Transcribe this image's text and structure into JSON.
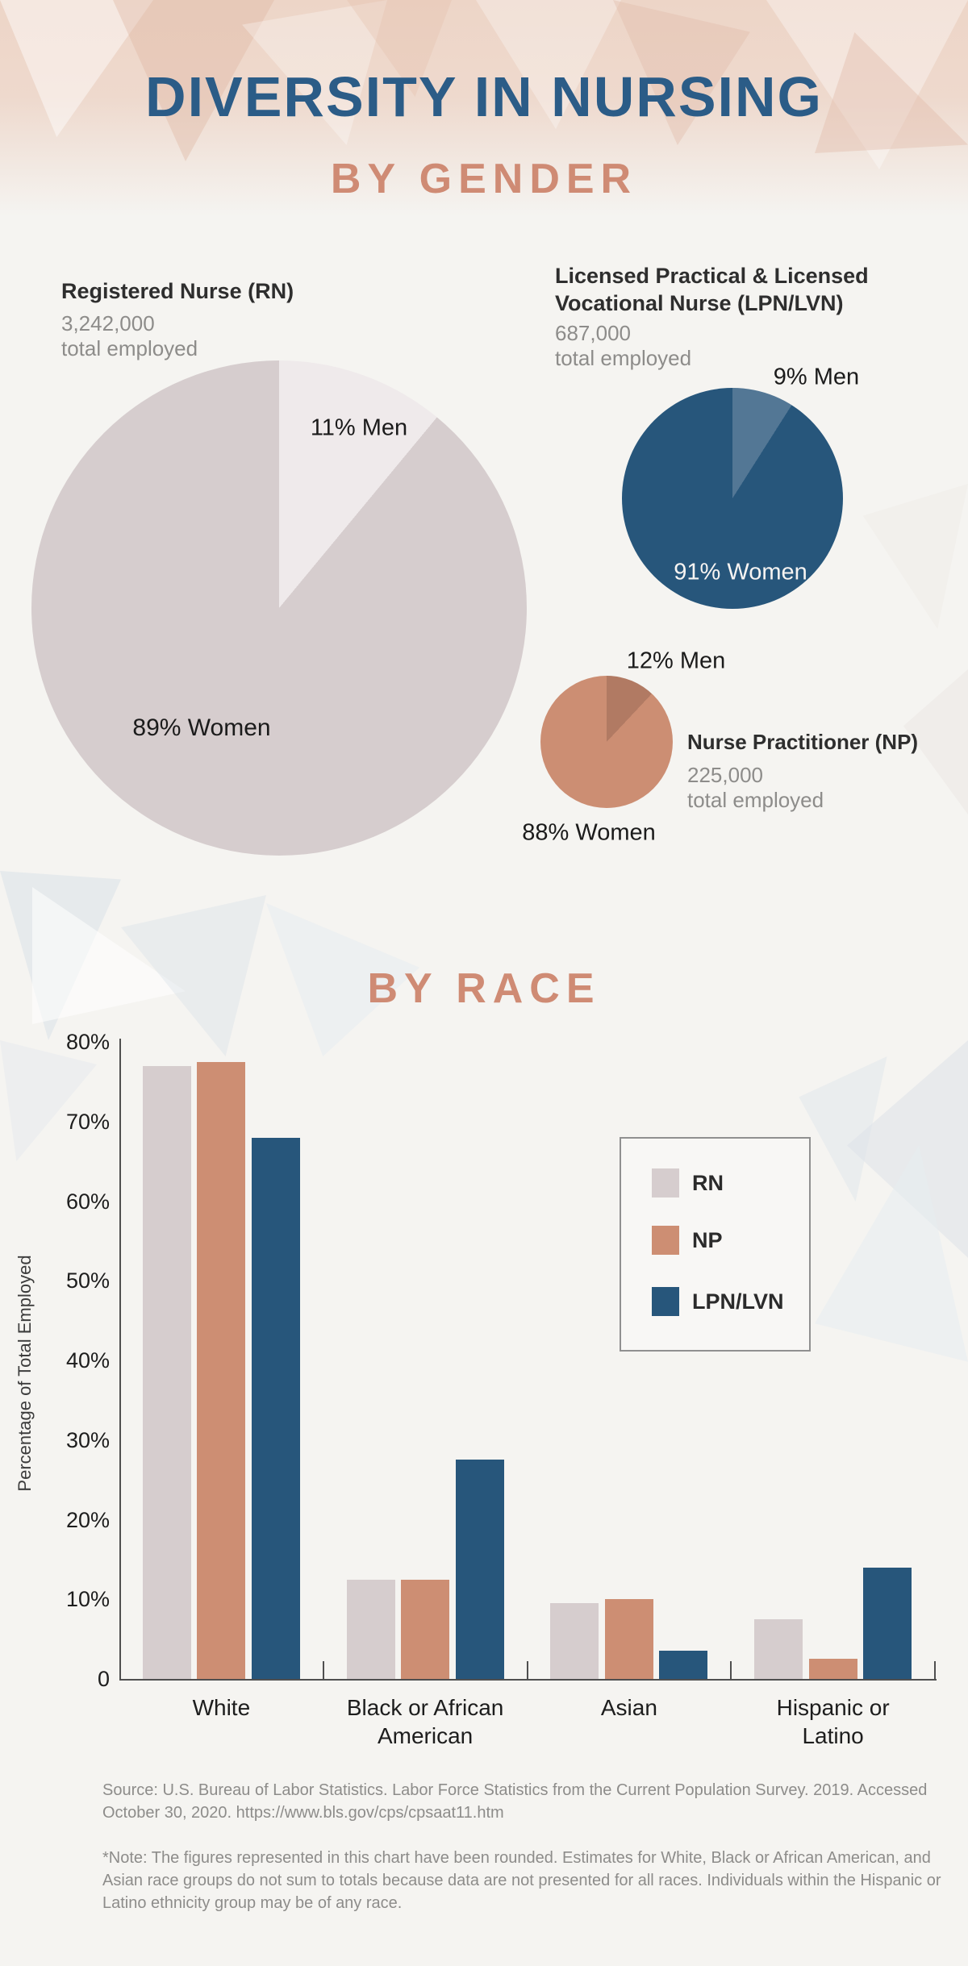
{
  "page": {
    "background": "#f5f4f1"
  },
  "header": {
    "title": "DIVERSITY IN NURSING",
    "title_color": "#2b5c87",
    "accent_color": "#cf8b74",
    "section_gender": "BY GENDER"
  },
  "chart_data": [
    {
      "type": "pie",
      "id": "rn",
      "title": "Registered Nurse (RN)",
      "total_employed": "3,242,000",
      "total_label": "total employed",
      "slices": [
        {
          "label": "89% Women",
          "value": 89,
          "color": "#d6cdce"
        },
        {
          "label": "11% Men",
          "value": 11,
          "color": "#efeaeb"
        }
      ]
    },
    {
      "type": "pie",
      "id": "lpn-lvn",
      "title_lines": [
        "Licensed Practical & Licensed",
        "Vocational Nurse (LPN/LVN)"
      ],
      "total_employed": "687,000",
      "total_label": "total employed",
      "slices": [
        {
          "label": "91% Women",
          "value": 91,
          "color": "#27567b"
        },
        {
          "label": "9% Men",
          "value": 9,
          "color": "#537795"
        }
      ]
    },
    {
      "type": "pie",
      "id": "np",
      "title": "Nurse Practitioner (NP)",
      "total_employed": "225,000",
      "total_label": "total employed",
      "slices": [
        {
          "label": "88% Women",
          "value": 88,
          "color": "#cc8e73"
        },
        {
          "label": "12% Men",
          "value": 12,
          "color": "#b17a63"
        }
      ]
    },
    {
      "type": "bar",
      "title": "BY RACE",
      "ylabel": "Percentage of Total Employed",
      "categories": [
        "White",
        "Black or African American",
        "Asian",
        "Hispanic or Latino"
      ],
      "series": [
        {
          "name": "RN",
          "color": "#d6cdce",
          "values": [
            77,
            12.5,
            9.5,
            7.5
          ]
        },
        {
          "name": "NP",
          "color": "#cd8e73",
          "values": [
            77.5,
            12.5,
            10,
            2.5
          ]
        },
        {
          "name": "LPN/LVN",
          "color": "#27567b",
          "values": [
            68,
            27.5,
            3.5,
            14
          ]
        }
      ],
      "ylim": [
        0,
        80
      ],
      "ytick_labels": [
        "0",
        "10%",
        "20%",
        "30%",
        "40%",
        "50%",
        "60%",
        "70%",
        "80%"
      ],
      "grid": false,
      "legend_position": "upper-right-inside"
    }
  ],
  "footer": {
    "source": "Source: U.S. Bureau of Labor Statistics. Labor Force Statistics from the Current Population Survey. 2019. Accessed October 30, 2020. https://www.bls.gov/cps/cpsaat11.htm",
    "note": "*Note: The figures represented in this chart have been rounded. Estimates for White, Black or African American, and Asian race groups do not sum to totals because data are not presented for all races. Individuals within the Hispanic or Latino ethnicity group may be of any race."
  }
}
